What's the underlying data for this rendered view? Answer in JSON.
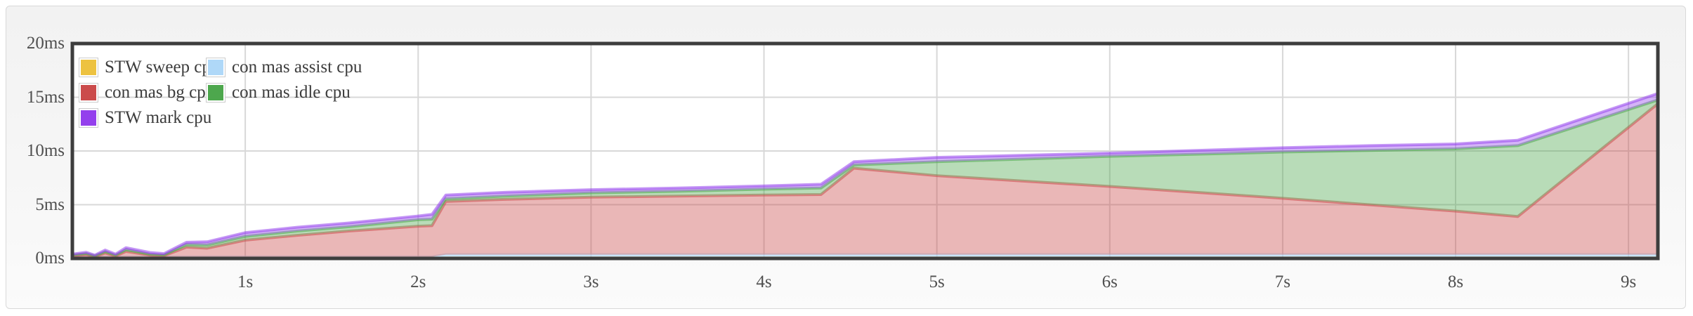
{
  "chart_data": {
    "type": "area",
    "stacked": true,
    "title": "",
    "xlabel": "",
    "ylabel": "",
    "x_unit": "s",
    "y_unit": "ms",
    "xlim": [
      0,
      9.17
    ],
    "ylim": [
      0,
      20
    ],
    "grid": true,
    "legend_position": "top-left",
    "x": [
      0,
      0.08,
      0.13,
      0.19,
      0.25,
      0.31,
      0.45,
      0.53,
      0.66,
      0.78,
      1.0,
      1.3,
      1.6,
      2.0,
      2.08,
      2.16,
      2.5,
      3.0,
      3.5,
      4.0,
      4.33,
      4.52,
      5.0,
      5.5,
      6.0,
      6.5,
      7.0,
      7.5,
      8.0,
      8.36,
      9.17
    ],
    "series": [
      {
        "name": "STW sweep cpu",
        "color": "#edc240",
        "values": [
          0.05,
          0.05,
          0.05,
          0.05,
          0.05,
          0.05,
          0.05,
          0.05,
          0.05,
          0.05,
          0.05,
          0.05,
          0.05,
          0.05,
          0.05,
          0.05,
          0.05,
          0.05,
          0.05,
          0.05,
          0.05,
          0.05,
          0.05,
          0.05,
          0.05,
          0.05,
          0.05,
          0.05,
          0.05,
          0.05,
          0.05
        ]
      },
      {
        "name": "con mas assist cpu",
        "color": "#afd8f8",
        "values": [
          0.1,
          0.1,
          0.1,
          0.1,
          0.1,
          0.1,
          0.1,
          0.1,
          0.1,
          0.1,
          0.1,
          0.1,
          0.1,
          0.1,
          0.1,
          0.3,
          0.3,
          0.3,
          0.3,
          0.3,
          0.3,
          0.3,
          0.3,
          0.3,
          0.3,
          0.3,
          0.3,
          0.3,
          0.3,
          0.3,
          0.3
        ]
      },
      {
        "name": "con mas bg cpu",
        "color": "#cb4b4b",
        "values": [
          0.1,
          0.2,
          0.03,
          0.35,
          0.07,
          0.5,
          0.15,
          0.1,
          0.9,
          0.8,
          1.55,
          2.0,
          2.4,
          2.85,
          2.9,
          4.95,
          5.15,
          5.35,
          5.45,
          5.55,
          5.6,
          8.05,
          7.35,
          6.85,
          6.35,
          5.8,
          5.25,
          4.65,
          4.05,
          3.55,
          14.05
        ]
      },
      {
        "name": "con mas idle cpu",
        "color": "#4da74d",
        "values": [
          0.07,
          0.1,
          0.06,
          0.12,
          0.08,
          0.17,
          0.08,
          0.07,
          0.25,
          0.3,
          0.35,
          0.4,
          0.4,
          0.6,
          0.6,
          0.25,
          0.3,
          0.4,
          0.45,
          0.55,
          0.6,
          0.3,
          1.3,
          2.05,
          2.8,
          3.55,
          4.3,
          5.05,
          5.8,
          6.6,
          0.35
        ]
      },
      {
        "name": "STW mark cpu",
        "color": "#9440ed",
        "values": [
          0.08,
          0.12,
          0.07,
          0.16,
          0.1,
          0.18,
          0.17,
          0.13,
          0.2,
          0.3,
          0.35,
          0.35,
          0.35,
          0.35,
          0.45,
          0.35,
          0.35,
          0.3,
          0.3,
          0.3,
          0.35,
          0.3,
          0.4,
          0.35,
          0.3,
          0.35,
          0.4,
          0.45,
          0.45,
          0.5,
          0.6
        ]
      }
    ],
    "x_ticks": [
      {
        "v": 1,
        "label": "1s"
      },
      {
        "v": 2,
        "label": "2s"
      },
      {
        "v": 3,
        "label": "3s"
      },
      {
        "v": 4,
        "label": "4s"
      },
      {
        "v": 5,
        "label": "5s"
      },
      {
        "v": 6,
        "label": "6s"
      },
      {
        "v": 7,
        "label": "7s"
      },
      {
        "v": 8,
        "label": "8s"
      },
      {
        "v": 9,
        "label": "9s"
      }
    ],
    "y_ticks": [
      {
        "v": 0,
        "label": "0ms"
      },
      {
        "v": 5,
        "label": "5ms"
      },
      {
        "v": 10,
        "label": "10ms"
      },
      {
        "v": 15,
        "label": "15ms"
      },
      {
        "v": 20,
        "label": "20ms"
      }
    ],
    "colors": {
      "plot_background": "#ffffff",
      "plot_border": "#3d3d3d",
      "gridline": "#d8d8d8",
      "axis_text": "#4f4f4f",
      "legend_text": "#3c3c3c",
      "panel_background": "#f5f5f5",
      "fill_opacity": 0.4,
      "line_opacity": 0.55
    }
  }
}
